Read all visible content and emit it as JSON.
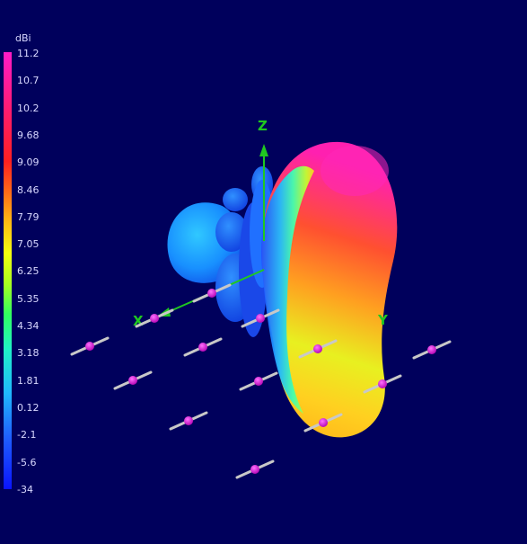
{
  "legend": {
    "unit": "dBi",
    "ticks": [
      "11.2",
      "10.7",
      "10.2",
      "9.68",
      "9.09",
      "8.46",
      "7.79",
      "7.05",
      "6.25",
      "5.35",
      "4.34",
      "3.18",
      "1.81",
      "0.12",
      "-2.1",
      "-5.6",
      "-34"
    ]
  },
  "axes": {
    "z": "Z",
    "x": "X",
    "y": "Y"
  },
  "colors": {
    "background": "#00005c",
    "axis": "#20c820",
    "element_feed": "#e020e0",
    "element_rod": "#c8c8c8"
  }
}
